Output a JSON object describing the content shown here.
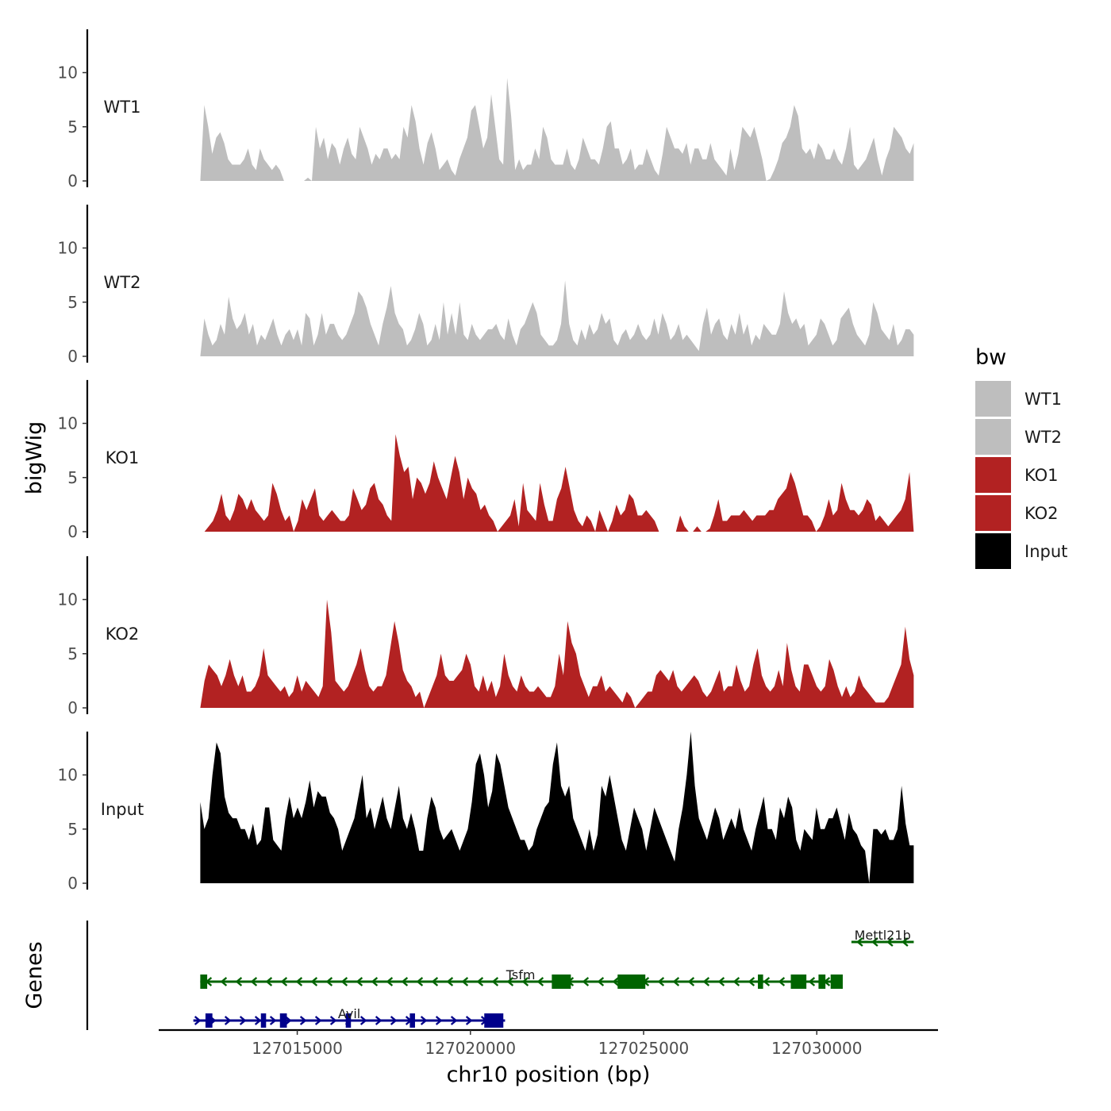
{
  "chart_data": {
    "type": "area",
    "y_axis_title": "bigWig",
    "x_axis_title": "chr10 position (bp)",
    "gene_track_title": "Genes",
    "x_range": [
      127011000,
      127033500
    ],
    "x_ticks": [
      127015000,
      127020000,
      127025000,
      127030000
    ],
    "y_range": [
      0,
      14
    ],
    "y_ticks": [
      0,
      5,
      10
    ],
    "legend_title": "bw",
    "data_start": 127012200,
    "data_end": 127032800,
    "tracks": [
      {
        "name": "WT1",
        "color": "#bebebe",
        "values": [
          0,
          7,
          5,
          2.5,
          4,
          4.5,
          3.5,
          2,
          1.5,
          1.5,
          1.5,
          2,
          3,
          1.5,
          1,
          3,
          2,
          1.5,
          1,
          1.5,
          1,
          0,
          0,
          0,
          0,
          0,
          0,
          0.3,
          0,
          5,
          3,
          4,
          2,
          3.5,
          3,
          1.5,
          3,
          4,
          2.5,
          2,
          5,
          4,
          3,
          1.5,
          2.5,
          2,
          3,
          3,
          2,
          2.5,
          2,
          5,
          4,
          7,
          5.5,
          3,
          1.5,
          3.5,
          4.5,
          3,
          1,
          1.5,
          2,
          1,
          0.5,
          2,
          3,
          4,
          6.5,
          7,
          5,
          3,
          4,
          8,
          5,
          2,
          1.5,
          9.5,
          6,
          1,
          2,
          1,
          1.5,
          1.5,
          3,
          2,
          5,
          4,
          2,
          1.5,
          1.5,
          1.5,
          3,
          1.5,
          1,
          2,
          4,
          3,
          2,
          2,
          1.5,
          3,
          5,
          5.5,
          3,
          3,
          1.5,
          2,
          3,
          1,
          1.5,
          1.5,
          3,
          2,
          1,
          0.5,
          2.5,
          5,
          4,
          3,
          3,
          2.5,
          3.5,
          1.5,
          3,
          3,
          2,
          2,
          3.5,
          2,
          1.5,
          1,
          0.5,
          3,
          1,
          2.5,
          5,
          4.5,
          4,
          5,
          3.5,
          2,
          0,
          0.2,
          1,
          2,
          3.5,
          4,
          5,
          7,
          6,
          3,
          2.5,
          3,
          2,
          3.5,
          3,
          2,
          2,
          3,
          2,
          1.5,
          3,
          5,
          1.5,
          1,
          1.5,
          2,
          3,
          4,
          2,
          0.5,
          2,
          3,
          5,
          4.5,
          4,
          3,
          2.5,
          3.5
        ]
      },
      {
        "name": "WT2",
        "color": "#bebebe",
        "values": [
          0,
          3.5,
          2,
          1,
          1.5,
          3,
          2,
          5.5,
          3.5,
          2.5,
          3,
          4,
          2,
          3,
          1,
          2,
          1.5,
          2.5,
          3.5,
          2,
          1,
          2,
          2.5,
          1.5,
          2.5,
          1,
          4,
          3.5,
          1,
          2,
          4,
          2,
          3,
          3,
          2,
          1.5,
          2,
          3,
          4,
          6,
          5.5,
          4.5,
          3,
          2,
          1,
          3,
          4.5,
          6.5,
          4,
          3,
          2.5,
          1,
          1.5,
          2.5,
          4,
          3,
          1,
          1.5,
          3,
          1.5,
          5,
          2,
          4,
          2,
          5,
          2,
          1.5,
          3,
          2,
          1.5,
          2,
          2.5,
          2.5,
          3,
          2,
          1.5,
          3.5,
          2,
          1,
          2.5,
          3,
          4,
          5,
          4,
          2,
          1.5,
          1,
          1,
          1.5,
          3,
          7,
          3,
          1.5,
          1,
          2.5,
          1.5,
          3,
          2,
          2.5,
          4,
          3,
          3.5,
          1.5,
          1,
          2,
          2.5,
          1.5,
          2,
          3,
          2,
          1.5,
          2,
          3.5,
          2,
          4,
          3,
          1.5,
          2,
          3,
          1.5,
          2,
          1.5,
          1,
          0.5,
          3,
          4.5,
          2,
          3,
          3.5,
          2,
          1.5,
          3,
          2,
          4,
          2,
          3,
          1,
          2,
          1.5,
          3,
          2.5,
          2,
          2,
          3,
          6,
          4,
          3,
          3.5,
          2.5,
          3,
          1,
          1.5,
          2,
          3.5,
          3,
          2,
          1,
          1.5,
          3.5,
          4,
          4.5,
          3,
          2,
          1.5,
          1,
          2,
          5,
          4,
          2.5,
          2,
          1.5,
          3,
          1,
          1.5,
          2.5,
          2.5,
          2
        ]
      },
      {
        "name": "KO1",
        "color": "#b22222",
        "values": [
          0,
          0,
          0.5,
          1,
          2,
          3.5,
          1.5,
          1,
          2,
          3.5,
          3,
          2,
          3,
          2,
          1.5,
          1,
          1.5,
          4.5,
          3.5,
          2,
          1,
          1.5,
          0,
          1,
          3,
          2,
          3,
          4,
          1.5,
          1,
          1.5,
          2,
          1.5,
          1,
          1,
          1.5,
          4,
          3,
          2,
          2.5,
          4,
          4.5,
          3,
          2.5,
          1.5,
          1,
          9,
          7,
          5.5,
          6,
          3,
          5,
          4.5,
          3.5,
          4.5,
          6.5,
          5,
          4,
          3,
          5,
          7,
          5.5,
          3,
          5,
          4,
          3.5,
          2,
          2.5,
          1.5,
          1,
          0,
          0.5,
          1,
          1.5,
          3,
          0.5,
          4.5,
          2,
          1.5,
          1,
          4.5,
          2.5,
          1,
          1,
          3,
          4,
          6,
          4,
          2,
          1,
          0.5,
          1.5,
          1,
          0,
          2,
          1,
          0,
          1,
          2.5,
          1.5,
          2,
          3.5,
          3,
          1.5,
          1.5,
          2,
          1.5,
          1,
          0,
          0,
          0,
          0,
          0,
          1.5,
          0.5,
          0,
          0,
          0.5,
          0,
          0,
          0.3,
          1.5,
          3,
          1,
          1,
          1.5,
          1.5,
          1.5,
          2,
          1.5,
          1,
          1.5,
          1.5,
          1.5,
          2,
          2,
          3,
          3.5,
          4,
          5.5,
          4.5,
          3,
          1.5,
          1.5,
          1,
          0,
          0.5,
          1.5,
          3,
          1.5,
          2,
          4.5,
          3,
          2,
          2,
          1.5,
          2,
          3,
          2.5,
          1,
          1.5,
          1,
          0.5,
          1,
          1.5,
          2,
          3,
          5.5,
          0
        ]
      },
      {
        "name": "KO2",
        "color": "#b22222",
        "values": [
          0,
          2.5,
          4,
          3.5,
          3,
          2,
          3,
          4.5,
          3,
          2,
          3,
          1.5,
          1.5,
          2,
          3,
          5.5,
          3,
          2.5,
          2,
          1.5,
          2,
          1,
          1.5,
          3,
          1.5,
          2.5,
          2,
          1.5,
          1,
          2,
          10,
          7,
          2.5,
          2,
          1.5,
          2,
          3,
          4,
          5.5,
          3.5,
          2,
          1.5,
          2,
          2,
          3,
          5.5,
          8,
          6,
          3.5,
          2.5,
          2,
          1,
          1.5,
          0,
          1,
          2,
          3,
          5,
          3,
          2.5,
          2.5,
          3,
          3.5,
          5,
          4,
          2,
          1.5,
          3,
          1.5,
          2.5,
          1,
          2,
          5,
          3,
          2,
          1.5,
          3,
          2,
          1.5,
          1.5,
          2,
          1.5,
          1,
          1,
          2,
          5,
          3,
          8,
          6,
          5,
          3,
          2,
          1,
          2,
          2,
          3,
          1.5,
          2,
          1.5,
          1,
          0.5,
          1.5,
          1,
          0,
          0.5,
          1,
          1.5,
          1.5,
          3,
          3.5,
          3,
          2.5,
          3.5,
          2,
          1.5,
          2,
          2.5,
          3,
          2.5,
          1.5,
          1,
          1.5,
          2.5,
          3.5,
          1.5,
          2,
          2,
          4,
          2.5,
          1.5,
          2,
          4,
          5.5,
          3,
          2,
          1.5,
          2,
          3.5,
          2,
          6,
          3.5,
          2,
          1.5,
          4,
          4,
          3,
          2,
          1.5,
          2,
          4.5,
          3.5,
          2,
          1,
          2,
          1,
          1.5,
          3,
          2,
          1.5,
          1,
          0.5,
          0.5,
          0.5,
          1,
          2,
          3,
          4,
          7.5,
          4.5,
          3
        ]
      },
      {
        "name": "Input",
        "color": "#000000",
        "values": [
          7.5,
          5,
          6,
          10,
          13,
          12,
          8,
          6.5,
          6,
          6,
          5,
          5,
          4,
          5.5,
          3.5,
          4,
          7,
          7,
          4,
          3.5,
          3,
          6,
          8,
          6,
          7,
          6,
          7.5,
          9.5,
          7,
          8.5,
          8,
          8,
          6.5,
          6,
          5,
          3,
          4,
          5,
          6,
          8,
          10,
          6,
          7,
          5,
          6.5,
          8,
          6,
          5,
          7,
          9,
          6,
          5,
          6.5,
          5,
          3,
          3,
          6,
          8,
          7,
          5,
          4,
          4.5,
          5,
          4,
          3,
          4,
          5,
          7.5,
          11,
          12,
          10,
          7,
          8.5,
          12,
          11,
          9,
          7,
          6,
          5,
          4,
          4,
          3,
          3.5,
          5,
          6,
          7,
          7.5,
          11,
          13,
          9,
          8,
          9,
          6,
          5,
          4,
          3,
          5,
          3,
          4.5,
          9,
          8,
          10,
          8,
          6,
          4,
          3,
          5,
          7,
          6,
          5,
          3,
          5,
          7,
          6,
          5,
          4,
          3,
          2,
          5,
          7,
          10,
          14,
          9,
          6,
          5,
          4,
          5.5,
          7,
          6,
          4,
          5,
          6,
          5,
          7,
          5,
          4,
          3,
          5,
          6.5,
          8,
          5,
          5,
          4,
          7,
          6,
          8,
          7,
          4,
          3,
          5,
          4.5,
          4,
          7,
          5,
          5,
          6,
          6,
          7,
          5.5,
          4,
          6.5,
          5,
          4.5,
          3.5,
          3,
          0,
          5,
          5,
          4.5,
          5,
          4,
          4,
          5,
          9,
          5.5,
          3.5,
          3.5
        ]
      }
    ],
    "genes": [
      {
        "name": "Mettl21b",
        "color": "#006400",
        "strand": "-",
        "start": 127031000,
        "end": 127032800,
        "row": 3,
        "exons": []
      },
      {
        "name": "Tsfm",
        "color": "#006400",
        "strand": "-",
        "start": 127012200,
        "end": 127030700,
        "row": 2,
        "exons": [
          [
            127012200,
            127012400
          ],
          [
            127022350,
            127022900
          ],
          [
            127024250,
            127025050
          ],
          [
            127028300,
            127028450
          ],
          [
            127029250,
            127029700
          ],
          [
            127030050,
            127030250
          ],
          [
            127030400,
            127030750
          ]
        ]
      },
      {
        "name": "Avil",
        "color": "#00008b",
        "strand": "+",
        "start": 127012000,
        "end": 127021000,
        "row": 1,
        "exons": [
          [
            127012350,
            127012550
          ],
          [
            127013950,
            127014100
          ],
          [
            127014500,
            127014700
          ],
          [
            127016400,
            127016550
          ],
          [
            127018250,
            127018400
          ],
          [
            127020400,
            127020950
          ]
        ]
      }
    ],
    "legend": [
      {
        "label": "WT1",
        "color": "#bebebe"
      },
      {
        "label": "WT2",
        "color": "#bebebe"
      },
      {
        "label": "KO1",
        "color": "#b22222"
      },
      {
        "label": "KO2",
        "color": "#b22222"
      },
      {
        "label": "Input",
        "color": "#000000"
      }
    ]
  }
}
